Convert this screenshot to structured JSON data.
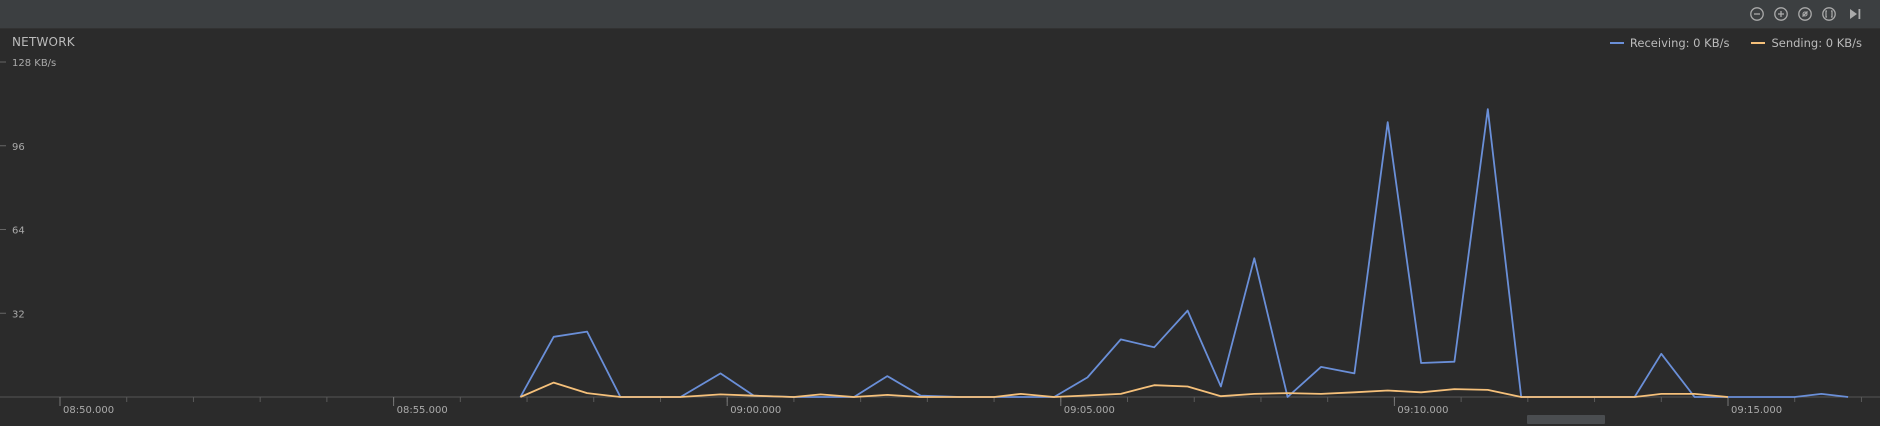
{
  "panel": {
    "title": "NETWORK"
  },
  "legend": {
    "receiving_label": "Receiving: 0 KB/s",
    "sending_label": "Sending: 0 KB/s"
  },
  "colors": {
    "receiving": "#6a8fd8",
    "sending": "#f5c07a",
    "background": "#2b2b2b",
    "toolbar": "#3c3f41",
    "axis": "#555555"
  },
  "toolbar": {
    "buttons": [
      "zoom-out-icon",
      "zoom-in-icon",
      "reset-zoom-icon",
      "fit-icon",
      "go-to-live-icon"
    ]
  },
  "chart_data": {
    "type": "line",
    "title": "NETWORK",
    "ylabel": "",
    "xlabel": "",
    "y_unit_label": "128 KB/s",
    "y_ticks": [
      {
        "value": 128,
        "label": "128 KB/s"
      },
      {
        "value": 96,
        "label": "96"
      },
      {
        "value": 64,
        "label": "64"
      },
      {
        "value": 32,
        "label": "32"
      }
    ],
    "ylim": [
      0,
      128
    ],
    "x_ticks": [
      {
        "t": 0,
        "label": "08:50.000"
      },
      {
        "t": 5,
        "label": "08:55.000"
      },
      {
        "t": 10,
        "label": "09:00.000"
      },
      {
        "t": 15,
        "label": "09:05.000"
      },
      {
        "t": 20,
        "label": "09:10.000"
      },
      {
        "t": 25,
        "label": "09:15.000"
      }
    ],
    "x_minor_per_major": 5,
    "series": [
      {
        "name": "Receiving",
        "points": [
          [
            6.9,
            0
          ],
          [
            7.4,
            23
          ],
          [
            7.9,
            25
          ],
          [
            8.4,
            0
          ],
          [
            9.3,
            0
          ],
          [
            9.9,
            9
          ],
          [
            10.4,
            0.5
          ],
          [
            11.0,
            0
          ],
          [
            11.9,
            0
          ],
          [
            12.4,
            8
          ],
          [
            12.9,
            0.5
          ],
          [
            13.5,
            0
          ],
          [
            14.9,
            0
          ],
          [
            15.4,
            7.5
          ],
          [
            15.9,
            22
          ],
          [
            16.4,
            19
          ],
          [
            16.9,
            33
          ],
          [
            17.4,
            4
          ],
          [
            17.9,
            53
          ],
          [
            18.4,
            0
          ],
          [
            18.9,
            11.5
          ],
          [
            19.4,
            9
          ],
          [
            19.9,
            105
          ],
          [
            20.4,
            13
          ],
          [
            20.9,
            13.5
          ],
          [
            21.4,
            110
          ],
          [
            21.9,
            0
          ],
          [
            23.6,
            0
          ],
          [
            24.0,
            16.5
          ],
          [
            24.5,
            0
          ],
          [
            26.0,
            0
          ],
          [
            26.4,
            1.2
          ],
          [
            26.8,
            0
          ]
        ]
      },
      {
        "name": "Sending",
        "points": [
          [
            6.9,
            0
          ],
          [
            7.4,
            5.5
          ],
          [
            7.9,
            1.5
          ],
          [
            8.4,
            0
          ],
          [
            9.3,
            0
          ],
          [
            9.9,
            1
          ],
          [
            10.4,
            0.5
          ],
          [
            11.0,
            0
          ],
          [
            11.4,
            1
          ],
          [
            11.9,
            0
          ],
          [
            12.4,
            0.8
          ],
          [
            12.9,
            0
          ],
          [
            14.0,
            0
          ],
          [
            14.4,
            1.2
          ],
          [
            14.9,
            0
          ],
          [
            15.9,
            1.2
          ],
          [
            16.4,
            4.5
          ],
          [
            16.9,
            4
          ],
          [
            17.4,
            0.3
          ],
          [
            17.9,
            1.2
          ],
          [
            18.4,
            1.5
          ],
          [
            18.9,
            1.2
          ],
          [
            19.4,
            1.8
          ],
          [
            19.9,
            2.5
          ],
          [
            20.4,
            1.8
          ],
          [
            20.9,
            3
          ],
          [
            21.4,
            2.7
          ],
          [
            21.9,
            0
          ],
          [
            23.6,
            0
          ],
          [
            24.0,
            1.2
          ],
          [
            24.5,
            1.2
          ],
          [
            25.0,
            0
          ]
        ]
      }
    ],
    "grid": false,
    "legend_position": "top-right"
  }
}
